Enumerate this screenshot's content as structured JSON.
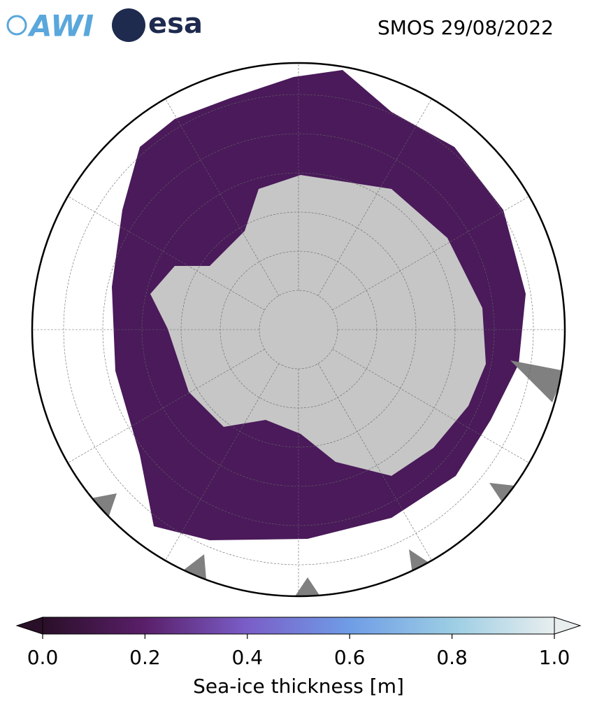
{
  "header": {
    "logos": [
      "AWI",
      "esa"
    ],
    "title": "SMOS 29/08/2022"
  },
  "colorbar": {
    "label": "Sea-ice thickness [m]",
    "lim": [
      0,
      1
    ],
    "ticks": [
      {
        "value": 0,
        "label": "0.0"
      },
      0.2,
      0.4,
      0.6,
      0.8,
      {
        "value": 1,
        "label": "1.0"
      }
    ],
    "colors": [
      "#2a0f28",
      "#5a1f6a",
      "#7a5ec8",
      "#6f9de6",
      "#9ccde4",
      "#e8eeee"
    ]
  }
}
